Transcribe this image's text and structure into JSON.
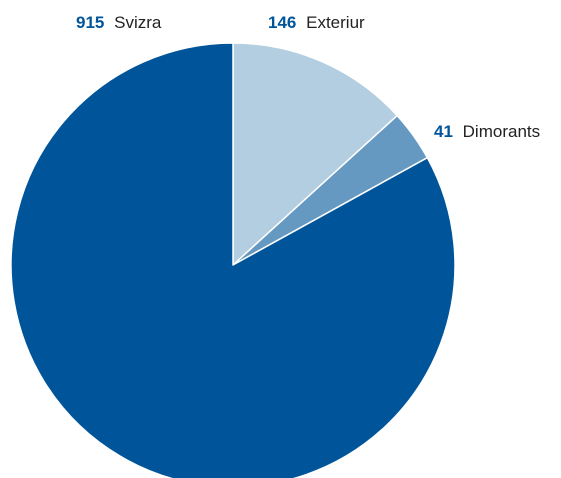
{
  "chart_data": {
    "type": "pie",
    "title": "",
    "slices": [
      {
        "name": "Exteriur",
        "value": 146,
        "color": "#b3cde1"
      },
      {
        "name": "Dimorants",
        "value": 41,
        "color": "#6699c2"
      },
      {
        "name": "Svizra",
        "value": 915,
        "color": "#00559a"
      }
    ],
    "start_angle_deg": 0,
    "direction": "clockwise",
    "label_value_color": "#00559a",
    "slice_border_color": "#ffffff"
  }
}
